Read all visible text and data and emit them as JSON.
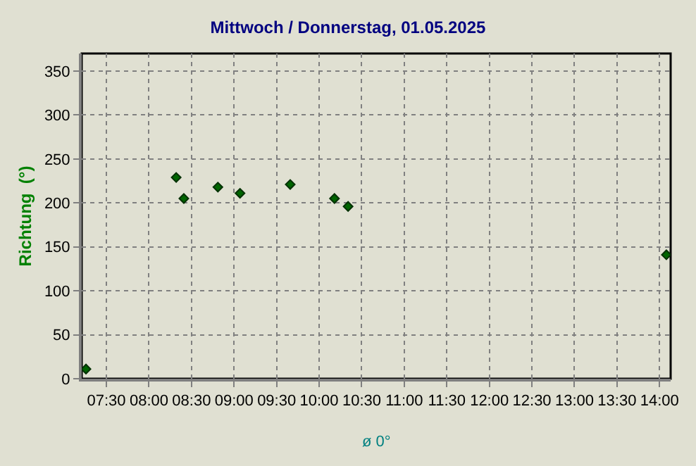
{
  "chart_data": {
    "type": "scatter",
    "title": "Mittwoch / Donnerstag, 01.05.2025",
    "ylabel": "Richtung  (°)",
    "x": [
      7.26,
      8.32,
      8.41,
      8.81,
      9.07,
      9.66,
      10.18,
      10.34,
      14.08
    ],
    "series": [
      {
        "color": "#006400",
        "values": [
          11,
          229,
          205,
          218,
          211,
          221,
          205,
          196,
          141
        ]
      }
    ],
    "xlim": [
      7.21,
      14.13
    ],
    "xticks": [
      {
        "value": 7.5,
        "label": "07:30"
      },
      {
        "value": 8,
        "label": "08:00"
      },
      {
        "value": 8.5,
        "label": "08:30"
      },
      {
        "value": 9,
        "label": "09:00"
      },
      {
        "value": 9.5,
        "label": "09:30"
      },
      {
        "value": 10,
        "label": "10:00"
      },
      {
        "value": 10.5,
        "label": "10:30"
      },
      {
        "value": 11,
        "label": "11:00"
      },
      {
        "value": 11.5,
        "label": "11:30"
      },
      {
        "value": 12,
        "label": "12:00"
      },
      {
        "value": 12.5,
        "label": "12:30"
      },
      {
        "value": 13,
        "label": "13:00"
      },
      {
        "value": 13.5,
        "label": "13:30"
      },
      {
        "value": 14,
        "label": "14:00"
      }
    ],
    "ylim": [
      0,
      370
    ],
    "yticks": [
      0,
      50,
      100,
      150,
      200,
      250,
      300,
      350
    ],
    "annotations": [
      "ø 0°"
    ],
    "grid": true,
    "marker": "diamond"
  }
}
